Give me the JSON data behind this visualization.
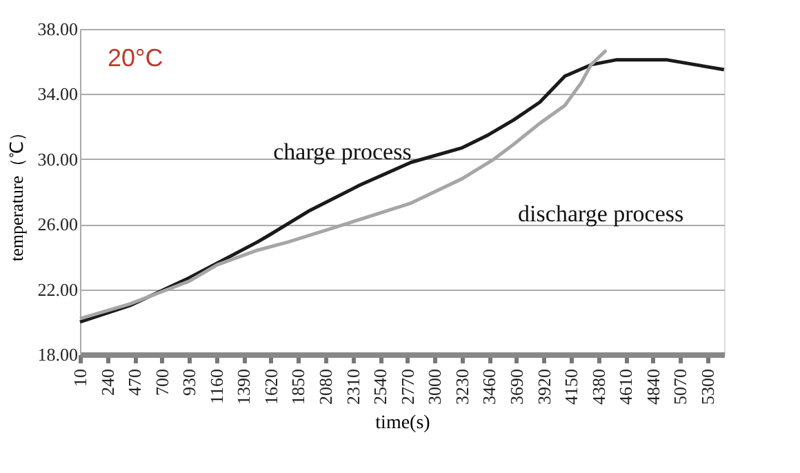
{
  "chart_data": {
    "type": "line",
    "xlabel": "time(s)",
    "ylabel": "temperature（℃）",
    "annotations": [
      "20°C"
    ],
    "xlim": [
      10,
      5440
    ],
    "xticks": [
      10,
      240,
      470,
      700,
      930,
      1160,
      1390,
      1620,
      1850,
      2080,
      2310,
      2540,
      2770,
      3000,
      3230,
      3460,
      3690,
      3920,
      4150,
      4380,
      4610,
      4840,
      5070,
      5300
    ],
    "ylim": [
      18,
      38
    ],
    "yticks": [
      {
        "value": 18,
        "label": "18.00"
      },
      {
        "value": 22,
        "label": "22.00"
      },
      {
        "value": 26,
        "label": "26.00"
      },
      {
        "value": 30,
        "label": "30.00"
      },
      {
        "value": 34,
        "label": "34.00"
      },
      {
        "value": 38,
        "label": "38.00"
      }
    ],
    "grid": "y",
    "legend": false,
    "line_style": "solid",
    "marker": "none",
    "series": [
      {
        "name": "charge process",
        "color": "#1a1a1a",
        "x": [
          10,
          430,
          930,
          1166,
          1504,
          1598,
          1936,
          2368,
          2800,
          3232,
          3454,
          3664,
          3886,
          4097,
          4318,
          4528,
          4960,
          5439
        ],
        "values": [
          20.0,
          21.0,
          22.7,
          23.6,
          24.9,
          25.3,
          26.8,
          28.4,
          29.8,
          30.7,
          31.5,
          32.4,
          33.5,
          35.1,
          35.8,
          36.1,
          36.1,
          35.5
        ]
      },
      {
        "name": "discharge process",
        "color": "#a6a6a6",
        "x": [
          10,
          430,
          930,
          1166,
          1504,
          1762,
          2287,
          2800,
          3232,
          3500,
          3664,
          3886,
          4097,
          4236,
          4318,
          4446
        ],
        "values": [
          20.2,
          21.1,
          22.5,
          23.5,
          24.4,
          24.9,
          26.1,
          27.3,
          28.8,
          30.0,
          30.9,
          32.2,
          33.3,
          34.7,
          35.8,
          36.7
        ]
      }
    ]
  }
}
